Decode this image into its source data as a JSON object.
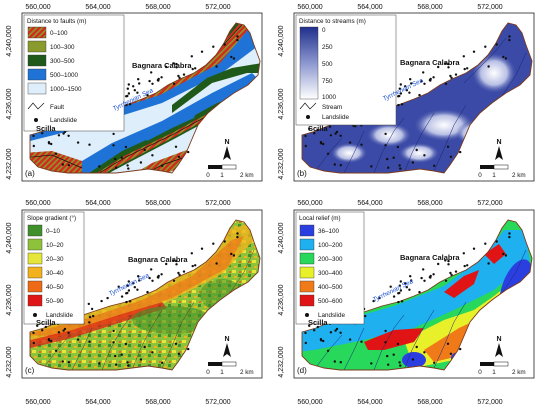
{
  "axes": {
    "x_ticks": [
      "560,000",
      "564,000",
      "568,000",
      "572,000"
    ],
    "y_ticks": [
      "4,240,000",
      "4,236,000",
      "4,232,000"
    ]
  },
  "places": {
    "town_ne": "Bagnara Calabra",
    "town_sw": "Scilla",
    "sea": "Tyrrhenian Sea"
  },
  "scale_bar": {
    "labels": [
      "0",
      "1",
      "2 km"
    ]
  },
  "north_label": "N",
  "panels": [
    {
      "id": "a",
      "panel_label": "(a)",
      "legend_title": "Distance to faults (m)",
      "classes": [
        {
          "label": "0–100",
          "color": "#d42a1e"
        },
        {
          "label": "100–300",
          "color": "#8a9a2c"
        },
        {
          "label": "300–500",
          "color": "#1f5a1a"
        },
        {
          "label": "500–1000",
          "color": "#1f73d6"
        },
        {
          "label": "1000–1500",
          "color": "#dfeefb"
        }
      ],
      "extra_legend": [
        {
          "label": "Fault",
          "symbol": "line"
        },
        {
          "label": "Landslide",
          "symbol": "dot"
        }
      ]
    },
    {
      "id": "b",
      "panel_label": "(b)",
      "legend_title": "Distance to streams (m)",
      "ramp_labels": [
        "0",
        "250",
        "500",
        "750",
        "1000"
      ],
      "ramp_colors": [
        "#1f2f8c",
        "#8c97cf",
        "#ffffff"
      ],
      "extra_legend": [
        {
          "label": "Stream",
          "symbol": "line"
        },
        {
          "label": "Landslide",
          "symbol": "dot"
        }
      ]
    },
    {
      "id": "c",
      "panel_label": "(c)",
      "legend_title": "Slope gradient (°)",
      "classes": [
        {
          "label": "0–10",
          "color": "#3f8f2a"
        },
        {
          "label": "10–20",
          "color": "#8fc23b"
        },
        {
          "label": "20–30",
          "color": "#e6e63a"
        },
        {
          "label": "30–40",
          "color": "#f2b21d"
        },
        {
          "label": "40–50",
          "color": "#ee6a17"
        },
        {
          "label": "50–90",
          "color": "#e01616"
        }
      ],
      "extra_legend": [
        {
          "label": "Landslide",
          "symbol": "dot"
        }
      ]
    },
    {
      "id": "d",
      "panel_label": "(d)",
      "legend_title": "Local relief (m)",
      "classes": [
        {
          "label": "36–100",
          "color": "#2b3fe0"
        },
        {
          "label": "100–200",
          "color": "#1fb0f0"
        },
        {
          "label": "200–300",
          "color": "#27d85a"
        },
        {
          "label": "300–400",
          "color": "#e8f02a"
        },
        {
          "label": "400–500",
          "color": "#f07a18"
        },
        {
          "label": "500–600",
          "color": "#e01414"
        }
      ],
      "extra_legend": [
        {
          "label": "Landslide",
          "symbol": "dot"
        }
      ]
    }
  ]
}
